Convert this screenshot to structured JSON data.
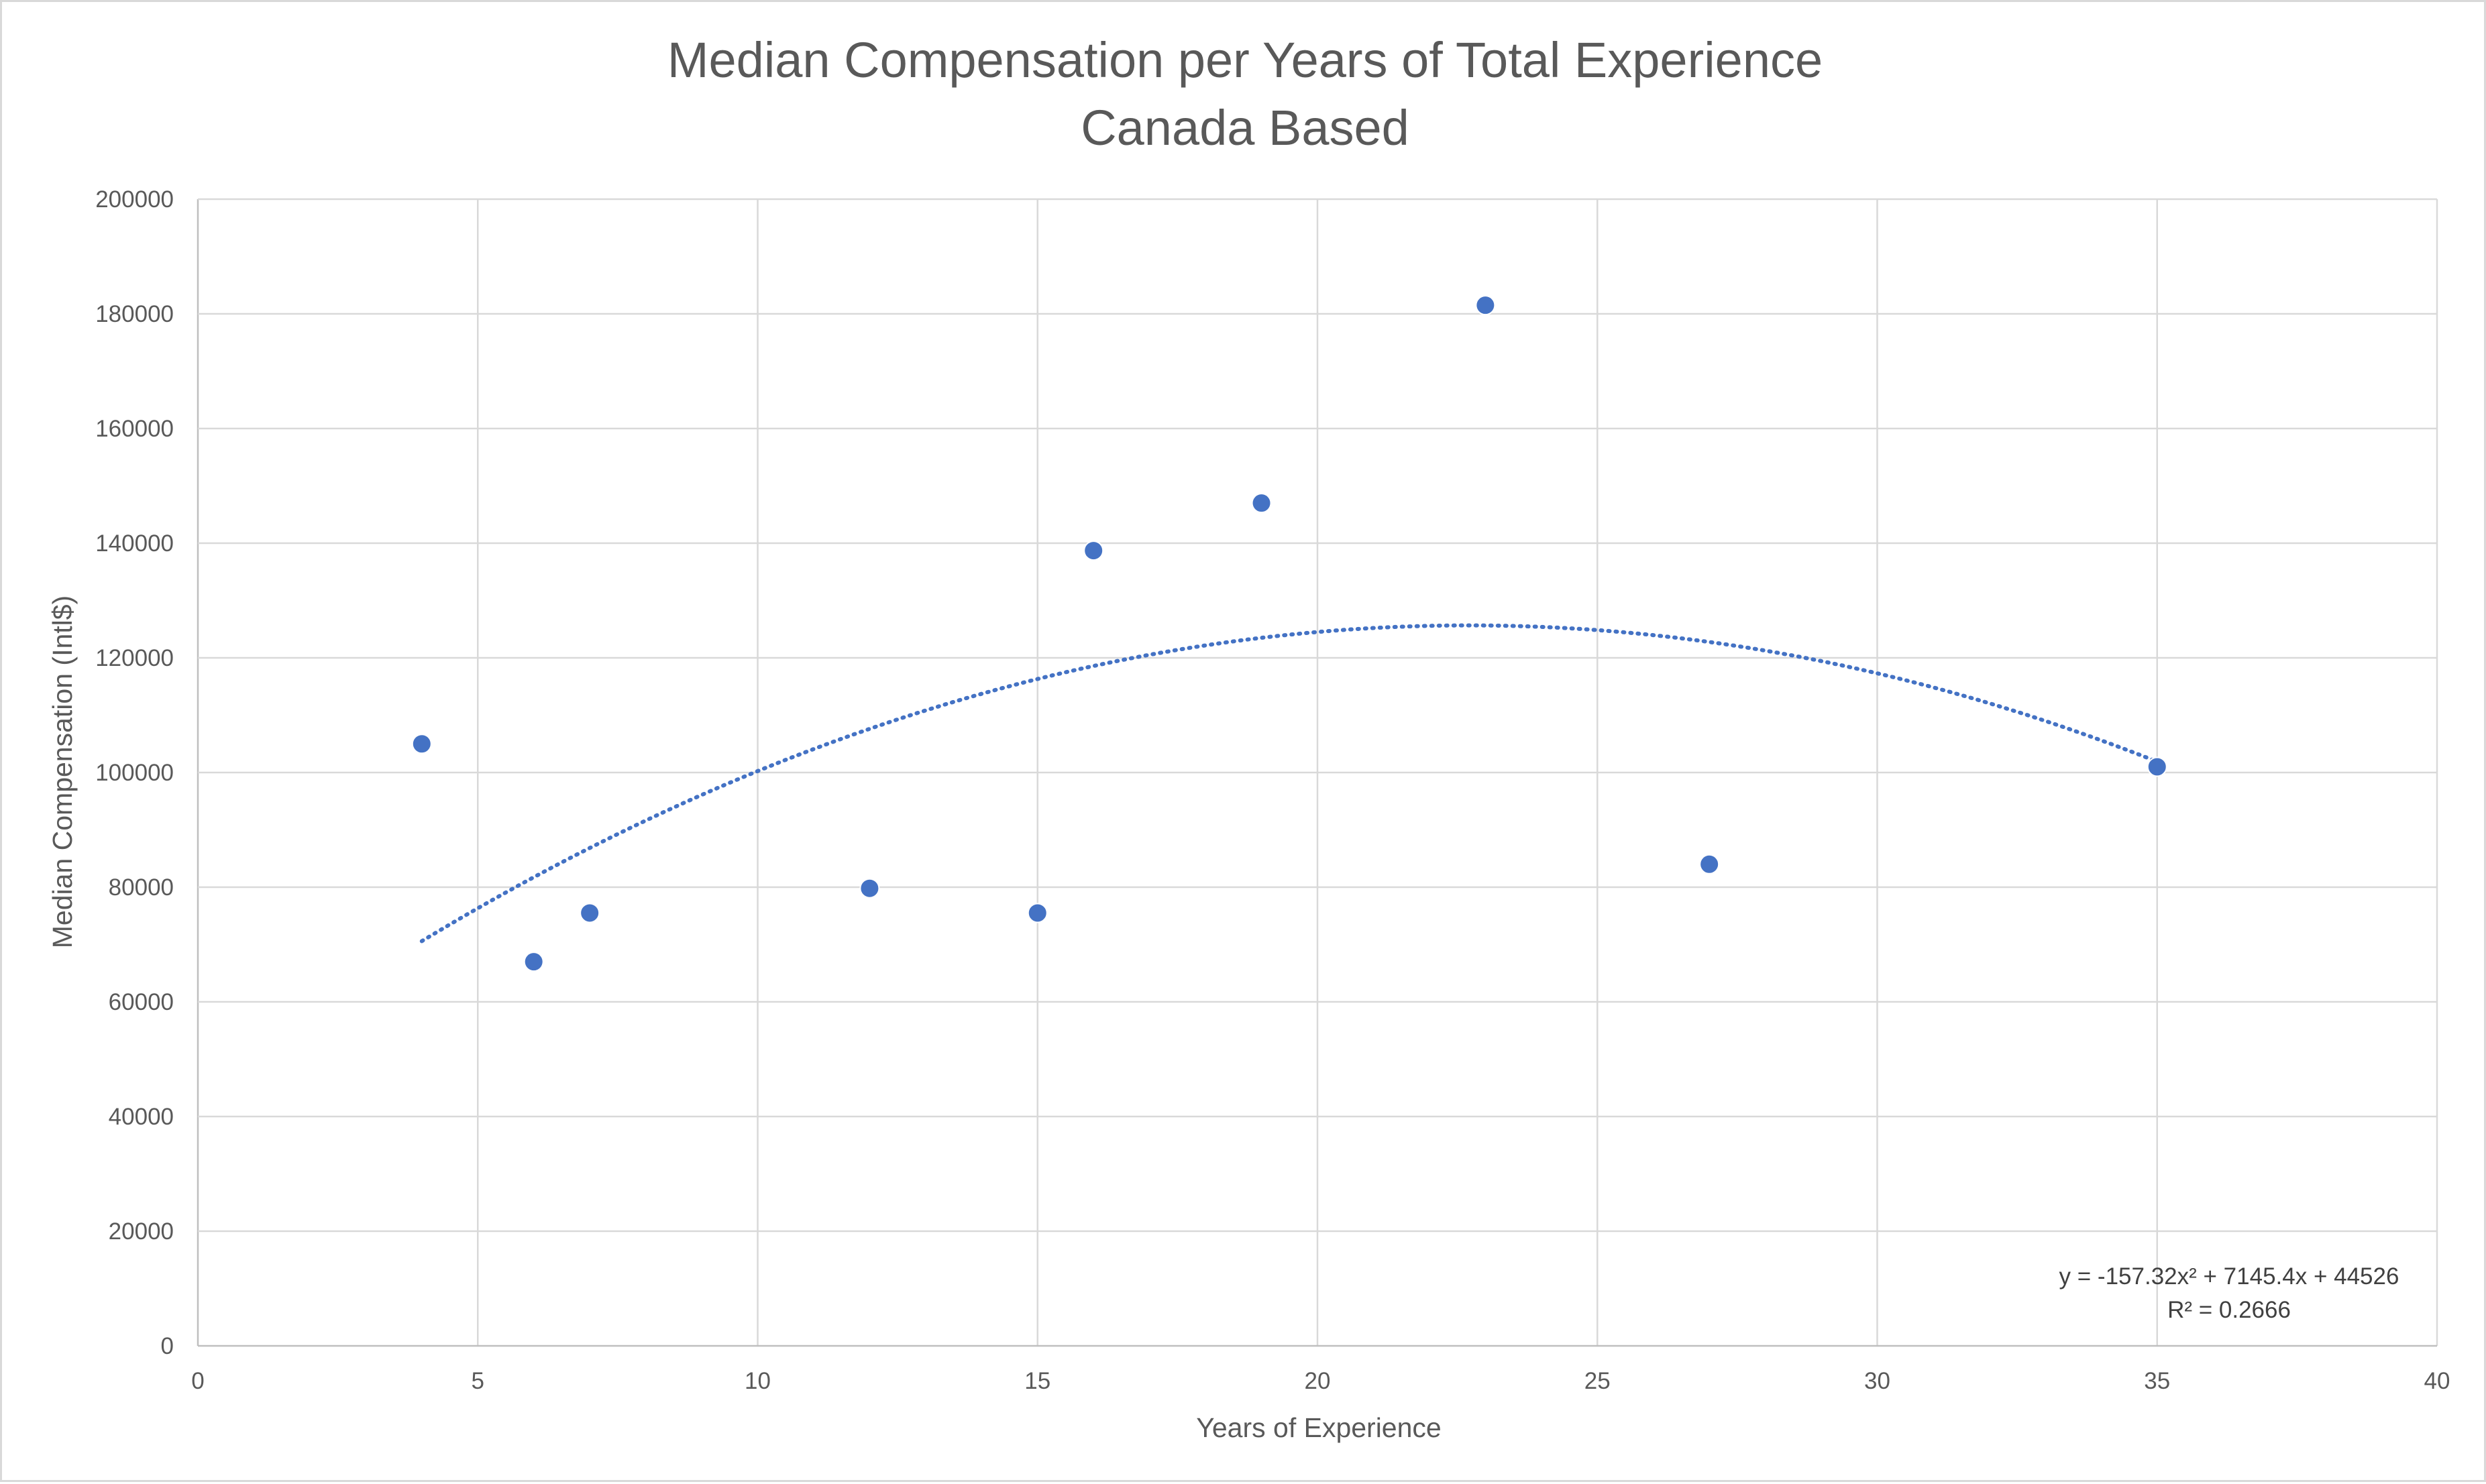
{
  "chart_data": {
    "type": "scatter",
    "title": "Median Compensation per Years of Total Experience",
    "subtitle": "Canada Based",
    "xlabel": "Years of Experience",
    "ylabel": "Median Compensation (Intl$)",
    "xlim": [
      0,
      40
    ],
    "ylim": [
      0,
      200000
    ],
    "x_ticks": [
      0,
      5,
      10,
      15,
      20,
      25,
      30,
      35,
      40
    ],
    "y_ticks": [
      0,
      20000,
      40000,
      60000,
      80000,
      100000,
      120000,
      140000,
      160000,
      180000,
      200000
    ],
    "grid": true,
    "legend": "none",
    "series": [
      {
        "color": "#4472c4",
        "points": [
          {
            "x": 4,
            "y": 105000
          },
          {
            "x": 6,
            "y": 67000
          },
          {
            "x": 7,
            "y": 75500
          },
          {
            "x": 12,
            "y": 79800
          },
          {
            "x": 15,
            "y": 75500
          },
          {
            "x": 16,
            "y": 138700
          },
          {
            "x": 19,
            "y": 147000
          },
          {
            "x": 23,
            "y": 181500
          },
          {
            "x": 27,
            "y": 84000
          },
          {
            "x": 35,
            "y": 101000
          }
        ]
      }
    ],
    "trendline": {
      "type": "polynomial",
      "order": 2,
      "style": "dotted",
      "color": "#4472c4",
      "coefficients": {
        "a": -157.32,
        "b": 7145.4,
        "c": 44526
      },
      "x_range": [
        4,
        35
      ],
      "equation_label": "y = -157.32x² + 7145.4x + 44526",
      "r2_label": "R² = 0.2666"
    }
  }
}
